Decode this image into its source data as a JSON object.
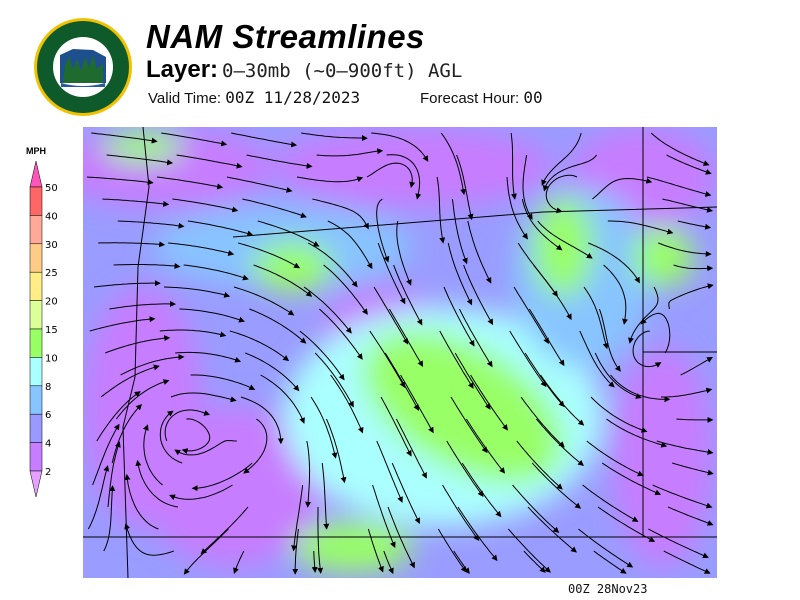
{
  "logo": {
    "text_top": "OREGON",
    "text_bottom": "DEPARTMENT OF FORESTRY"
  },
  "header": {
    "title": "NAM Streamlines",
    "layer_label": "Layer:",
    "layer_value": "0–30mb (~0–900ft) AGL",
    "valid_label": "Valid Time:",
    "valid_value": "00Z 11/28/2023",
    "forecast_label": "Forecast Hour:",
    "forecast_value": "00"
  },
  "colorbar": {
    "unit": "MPH",
    "labels": [
      "50",
      "40",
      "30",
      "25",
      "20",
      "15",
      "10",
      "8",
      "6",
      "4",
      "2"
    ],
    "colors": {
      "over": "#ff55bb",
      "b40_50": "#ff6666",
      "b30_40": "#ffaa99",
      "b25_30": "#ffcc88",
      "b20_25": "#ffee88",
      "b15_20": "#ddff99",
      "b10_15": "#99ff66",
      "b8_10": "#aaffff",
      "b6_8": "#88c4ff",
      "b4_6": "#9999ff",
      "b2_4": "#c77dff",
      "under": "#e6a0ff"
    }
  },
  "footer": {
    "stamp": "00Z 28Nov23"
  }
}
